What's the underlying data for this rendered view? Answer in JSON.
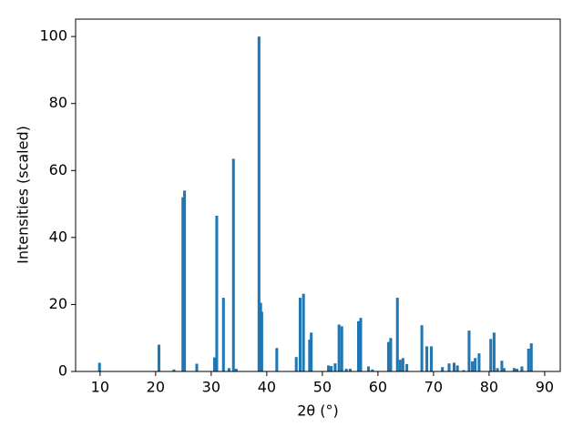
{
  "chart_data": {
    "type": "bar",
    "x_label": "2θ (°)",
    "y_label": "Intensities (scaled)",
    "color": "#1f77b4",
    "x": [
      9.9,
      20.6,
      23.3,
      24.9,
      25.2,
      27.4,
      30.6,
      31.0,
      32.2,
      33.2,
      34.0,
      34.5,
      38.6,
      38.9,
      39.1,
      41.8,
      45.3,
      46.0,
      46.6,
      47.7,
      48.0,
      51.1,
      51.6,
      52.3,
      53.0,
      53.5,
      54.3,
      55.0,
      56.5,
      56.9,
      58.3,
      59.0,
      61.9,
      62.3,
      63.5,
      64.0,
      64.5,
      65.2,
      67.9,
      68.8,
      69.6,
      71.6,
      72.8,
      73.7,
      74.3,
      75.4,
      76.4,
      77.0,
      77.5,
      78.2,
      80.3,
      80.9,
      81.5,
      82.3,
      82.7,
      84.5,
      85.0,
      85.9,
      87.1,
      87.6
    ],
    "values": [
      2.6,
      8,
      0.6,
      52,
      54,
      2.3,
      4.2,
      46.5,
      22,
      1,
      63.5,
      0.8,
      100,
      20.5,
      17.8,
      7,
      4.3,
      22,
      23.2,
      9.5,
      11.6,
      1.8,
      1.6,
      2.4,
      14,
      13.5,
      0.8,
      0.8,
      15,
      16,
      1.5,
      0.6,
      8.8,
      10,
      22,
      3.5,
      4,
      2.2,
      13.8,
      7.5,
      7.5,
      1.3,
      2.4,
      2.6,
      1.8,
      0.4,
      12.2,
      3,
      4,
      5.4,
      9.7,
      11.6,
      1,
      3.2,
      1,
      1,
      0.8,
      1.5,
      6.8,
      8.4
    ],
    "xlim": [
      5.6,
      92.8
    ],
    "ylim": [
      0,
      105.2
    ],
    "xticks": [
      10,
      20,
      30,
      40,
      50,
      60,
      70,
      80,
      90
    ],
    "yticks": [
      0,
      20,
      40,
      60,
      80,
      100
    ]
  }
}
